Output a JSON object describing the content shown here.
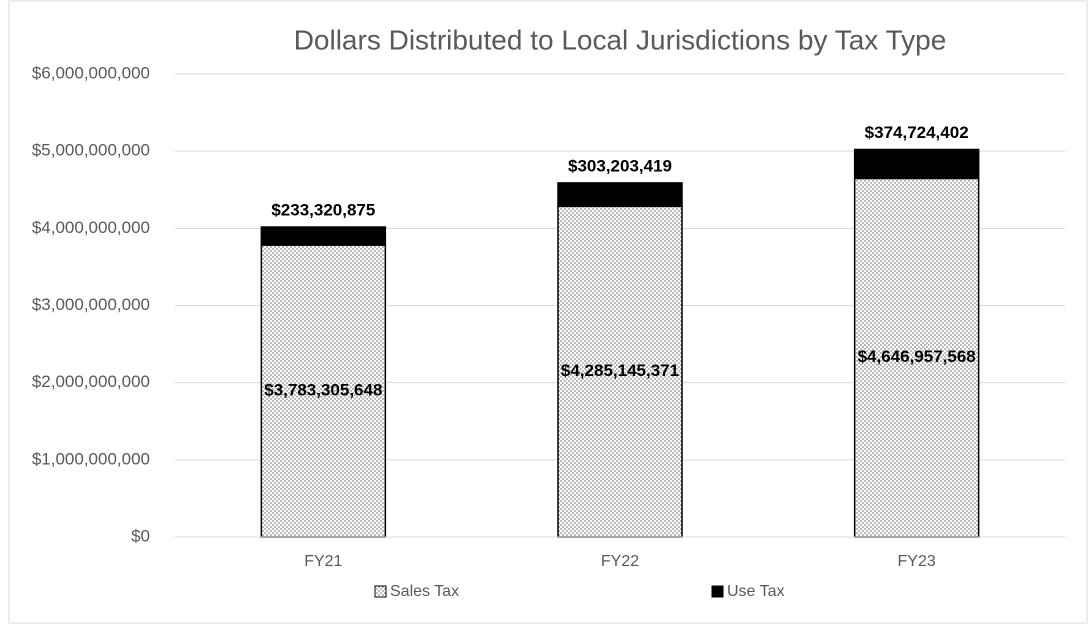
{
  "chart_data": {
    "type": "stacked_bar",
    "title": "Dollars Distributed to Local Jurisdictions by Tax Type",
    "categories": [
      "FY21",
      "FY22",
      "FY23"
    ],
    "series": [
      {
        "name": "Sales Tax",
        "color": "#ffffff",
        "pattern": "dotted",
        "values": [
          3783305648,
          4285145371,
          4646957568
        ],
        "value_labels": [
          "$3,783,305,648",
          "$4,285,145,371",
          "$4,646,957,568"
        ]
      },
      {
        "name": "Use Tax",
        "color": "#000000",
        "values": [
          233320875,
          303203419,
          374724402
        ],
        "value_labels": [
          "$233,320,875",
          "$303,203,419",
          "$374,724,402"
        ]
      }
    ],
    "ylim": [
      0,
      6000000000
    ],
    "yticks": [
      {
        "value": 0,
        "label": "$0"
      },
      {
        "value": 1000000000,
        "label": "$1,000,000,000"
      },
      {
        "value": 2000000000,
        "label": "$2,000,000,000"
      },
      {
        "value": 3000000000,
        "label": "$3,000,000,000"
      },
      {
        "value": 4000000000,
        "label": "$4,000,000,000"
      },
      {
        "value": 5000000000,
        "label": "$5,000,000,000"
      },
      {
        "value": 6000000000,
        "label": "$6,000,000,000"
      }
    ],
    "grid": true,
    "legend": "bottom"
  }
}
